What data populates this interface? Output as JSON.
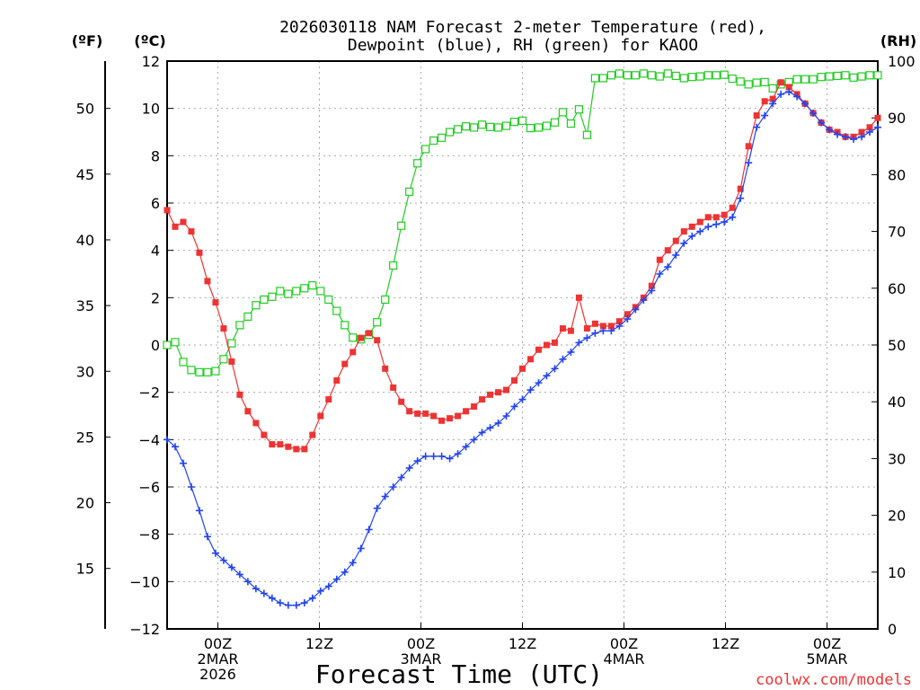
{
  "chart_data": {
    "type": "line",
    "title_line1": "2026030118 NAM Forecast 2-meter Temperature (red),",
    "title_line2": "Dewpoint (blue), RH (green) for KAOO",
    "xlabel": "Forecast Time (UTC)",
    "credit": "coolwx.com/models",
    "units": {
      "fahrenheit": "(ºF)",
      "celsius": "(ºC)",
      "rh": "(RH)"
    },
    "colors": {
      "temperature": "#ee3333",
      "dewpoint": "#2244ee",
      "rh": "#22cc22",
      "grid": "#aaaaaa"
    },
    "x_hours_range": [
      18,
      123
    ],
    "ylim_celsius": [
      -12,
      12
    ],
    "ylim_rh": [
      0,
      100
    ],
    "celsius_ticks": [
      "12",
      "10",
      "8",
      "6",
      "4",
      "2",
      "0",
      "−2",
      "−4",
      "−6",
      "−8",
      "−10",
      "−12"
    ],
    "fahrenheit_ticks": [
      {
        "label": "50",
        "value": 50
      },
      {
        "label": "45",
        "value": 45
      },
      {
        "label": "40",
        "value": 40
      },
      {
        "label": "35",
        "value": 35
      },
      {
        "label": "30",
        "value": 30
      },
      {
        "label": "25",
        "value": 25
      },
      {
        "label": "20",
        "value": 20
      },
      {
        "label": "15",
        "value": 15
      }
    ],
    "rh_ticks": [
      "100",
      "90",
      "80",
      "70",
      "60",
      "50",
      "40",
      "30",
      "20",
      "10",
      "0"
    ],
    "x_ticks": [
      {
        "hour": 25.5,
        "lines": [
          "00Z",
          "2MAR",
          "2026"
        ]
      },
      {
        "hour": 40.5,
        "lines": [
          "12Z"
        ]
      },
      {
        "hour": 55.5,
        "lines": [
          "00Z",
          "3MAR"
        ]
      },
      {
        "hour": 70.5,
        "lines": [
          "12Z"
        ]
      },
      {
        "hour": 85.5,
        "lines": [
          "00Z",
          "4MAR"
        ]
      },
      {
        "hour": 100.5,
        "lines": [
          "12Z"
        ]
      },
      {
        "hour": 115.5,
        "lines": [
          "00Z",
          "5MAR"
        ]
      }
    ],
    "series": [
      {
        "name": "Temperature",
        "unit": "C",
        "values": [
          5.7,
          5.0,
          5.2,
          4.8,
          3.9,
          2.7,
          1.8,
          0.7,
          -0.7,
          -2.1,
          -2.8,
          -3.3,
          -3.8,
          -4.2,
          -4.2,
          -4.3,
          -4.4,
          -4.4,
          -3.8,
          -3.0,
          -2.3,
          -1.5,
          -0.8,
          -0.3,
          0.3,
          0.5,
          0.2,
          -1.0,
          -1.8,
          -2.4,
          -2.8,
          -2.9,
          -2.9,
          -3.0,
          -3.2,
          -3.1,
          -3.0,
          -2.8,
          -2.6,
          -2.3,
          -2.1,
          -2.0,
          -1.9,
          -1.5,
          -1.0,
          -0.6,
          -0.2,
          0.0,
          0.1,
          0.7,
          0.6,
          2.0,
          0.7,
          0.9,
          0.8,
          0.8,
          1.0,
          1.3,
          1.6,
          2.0,
          2.5,
          3.6,
          4.0,
          4.4,
          4.8,
          5.0,
          5.2,
          5.4,
          5.4,
          5.5,
          5.8,
          6.6,
          8.4,
          9.7,
          10.3,
          10.4,
          11.1,
          10.9,
          10.6,
          10.2,
          9.8,
          9.4,
          9.1,
          9.0,
          8.8,
          8.8,
          9.0,
          9.2,
          9.6
        ]
      },
      {
        "name": "Dewpoint",
        "unit": "C",
        "values": [
          -4.0,
          -4.3,
          -5.0,
          -6.0,
          -7.0,
          -8.1,
          -8.8,
          -9.1,
          -9.4,
          -9.7,
          -10.0,
          -10.3,
          -10.5,
          -10.7,
          -10.9,
          -11.0,
          -11.0,
          -10.9,
          -10.7,
          -10.4,
          -10.2,
          -9.9,
          -9.6,
          -9.2,
          -8.6,
          -7.8,
          -6.9,
          -6.4,
          -6.0,
          -5.6,
          -5.2,
          -4.9,
          -4.7,
          -4.7,
          -4.7,
          -4.8,
          -4.6,
          -4.3,
          -4.0,
          -3.7,
          -3.5,
          -3.3,
          -3.0,
          -2.6,
          -2.3,
          -1.9,
          -1.6,
          -1.3,
          -1.0,
          -0.6,
          -0.3,
          0.1,
          0.3,
          0.5,
          0.6,
          0.6,
          0.8,
          1.1,
          1.5,
          1.9,
          2.3,
          3.0,
          3.3,
          3.8,
          4.3,
          4.6,
          4.8,
          5.0,
          5.1,
          5.2,
          5.4,
          6.2,
          7.7,
          9.2,
          9.7,
          10.2,
          10.6,
          10.7,
          10.5,
          10.2,
          9.8,
          9.4,
          9.1,
          8.9,
          8.8,
          8.7,
          8.8,
          9.0,
          9.2
        ]
      },
      {
        "name": "RH",
        "unit": "%",
        "values": [
          50,
          50.5,
          47,
          45.6,
          45.2,
          45.2,
          45.4,
          47.5,
          50.3,
          53.5,
          55,
          57,
          58,
          58.5,
          59.5,
          59,
          59.5,
          60,
          60.5,
          59.5,
          58,
          56,
          53.5,
          51.3,
          51,
          51.8,
          54,
          58,
          64,
          71,
          77,
          82,
          84.5,
          86,
          86.5,
          87.5,
          88,
          88.5,
          88.3,
          88.8,
          88.4,
          88.3,
          88.6,
          89.3,
          89.5,
          88.2,
          88.3,
          88.6,
          89.2,
          91,
          89,
          91.5,
          87,
          97,
          97,
          97.5,
          97.8,
          97.5,
          97.5,
          97.8,
          97.5,
          97.3,
          97.8,
          97.4,
          97,
          97.2,
          97.3,
          97.5,
          97.5,
          97.6,
          96.9,
          96.4,
          95.9,
          96.2,
          96.3,
          95.2,
          95.9,
          96.3,
          96.8,
          96.8,
          96.8,
          97.2,
          97.3,
          97.4,
          97.5,
          97.1,
          97.3,
          97.5,
          97.5
        ]
      }
    ]
  }
}
